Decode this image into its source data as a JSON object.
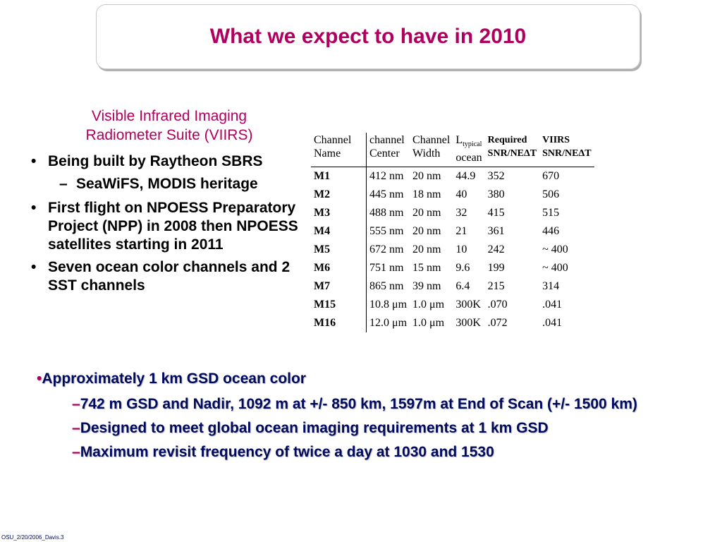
{
  "title": "What we expect to have in 2010",
  "viirs_heading": [
    "Visible Infrared Imaging",
    "Radiometer Suite (VIIRS)"
  ],
  "left_bullets": [
    "Being built by Raytheon SBRS",
    "SeaWiFS, MODIS heritage",
    "First flight on NPOESS Preparatory Project (NPP) in 2008 then NPOESS satellites starting in 2011",
    "Seven ocean color channels and 2 SST channels"
  ],
  "bullet_mark": "•",
  "dash_mark": "–",
  "table": {
    "headers": {
      "name": [
        "Channel",
        "Name"
      ],
      "center": [
        "channel",
        "Center"
      ],
      "width": [
        "Channel",
        "Width"
      ],
      "ltyp_main": "L",
      "ltyp_sub": "typical",
      "ltyp_line2": "ocean",
      "snr": [
        "Required",
        "SNR/NEΔT"
      ],
      "viirs": [
        "VIIRS",
        "SNR/NEΔT"
      ]
    },
    "rows": [
      [
        "M1",
        "412 nm",
        "20 nm",
        "44.9",
        "352",
        "670"
      ],
      [
        "M2",
        "445 nm",
        "18 nm",
        "40",
        "380",
        "506"
      ],
      [
        "M3",
        "488 nm",
        "20 nm",
        "32",
        "415",
        "515"
      ],
      [
        "M4",
        "555 nm",
        "20 nm",
        "21",
        "361",
        "446"
      ],
      [
        "M5",
        "672 nm",
        "20 nm",
        "10",
        "242",
        "~ 400"
      ],
      [
        "M6",
        "751 nm",
        "15 nm",
        "9.6",
        "199",
        "~ 400"
      ],
      [
        "M7",
        "865 nm",
        "39 nm",
        "6.4",
        "215",
        "314"
      ],
      [
        "M15",
        "10.8 μm",
        "1.0 μm",
        "300K",
        ".070",
        ".041"
      ],
      [
        "M16",
        "12.0 μm",
        "1.0 μm",
        "300K",
        ".072",
        ".041"
      ]
    ]
  },
  "bottom_main": "Approximately 1 km GSD ocean color",
  "bottom_subs": [
    "742 m GSD and Nadir, 1092 m at +/- 850 km, 1597m at End of Scan (+/- 1500 km)",
    "Designed to meet global ocean imaging requirements at 1 km GSD",
    "Maximum revisit frequency of twice a day at 1030 and 1530"
  ],
  "footer": "OSU_2/20/2006_Davis.3"
}
